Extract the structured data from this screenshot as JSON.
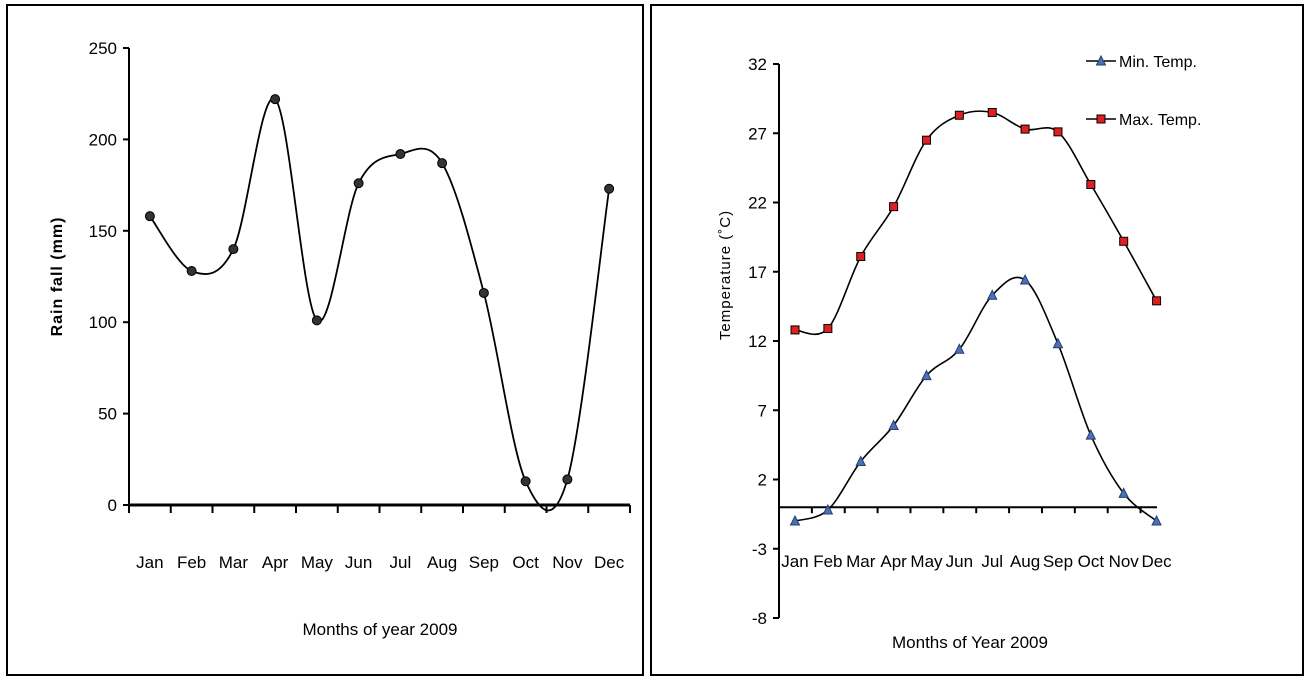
{
  "chart_data": [
    {
      "type": "line",
      "categories": [
        "Jan",
        "Feb",
        "Mar",
        "Apr",
        "May",
        "Jun",
        "Jul",
        "Aug",
        "Sep",
        "Oct",
        "Nov",
        "Dec"
      ],
      "series": [
        {
          "values": [
            158,
            128,
            140,
            222,
            101,
            176,
            192,
            187,
            116,
            13,
            14,
            173
          ]
        }
      ],
      "xlabel": "Months of year 2009",
      "ylabel": "Rain fall (mm)",
      "yticks": [
        0,
        50,
        100,
        150,
        200,
        250
      ],
      "ylim": [
        0,
        250
      ],
      "marker_color": "#333333",
      "grid": false,
      "smooth": true
    },
    {
      "type": "line",
      "categories": [
        "Jan",
        "Feb",
        "Mar",
        "Apr",
        "May",
        "Jun",
        "Jul",
        "Aug",
        "Sep",
        "Oct",
        "Nov",
        "Dec"
      ],
      "series": [
        {
          "name": "Min. Temp.",
          "values": [
            -1.0,
            -0.2,
            3.3,
            5.9,
            9.5,
            11.4,
            15.3,
            16.4,
            11.8,
            5.2,
            1.0,
            -1.0
          ],
          "marker": "triangle",
          "marker_color": "#4f6fb0"
        },
        {
          "name": "Max. Temp.",
          "values": [
            12.8,
            12.9,
            18.1,
            21.7,
            26.5,
            28.3,
            28.5,
            27.3,
            27.1,
            23.3,
            19.2,
            14.9
          ],
          "marker": "square",
          "marker_color": "#e02020"
        }
      ],
      "xlabel": "Months of Year 2009",
      "ylabel": "Temperature (˚C)",
      "yticks": [
        -8,
        -3,
        2,
        7,
        12,
        17,
        22,
        27,
        32
      ],
      "ylim": [
        -8,
        32
      ],
      "legend_position": "top-right",
      "grid": false,
      "smooth": true
    }
  ]
}
